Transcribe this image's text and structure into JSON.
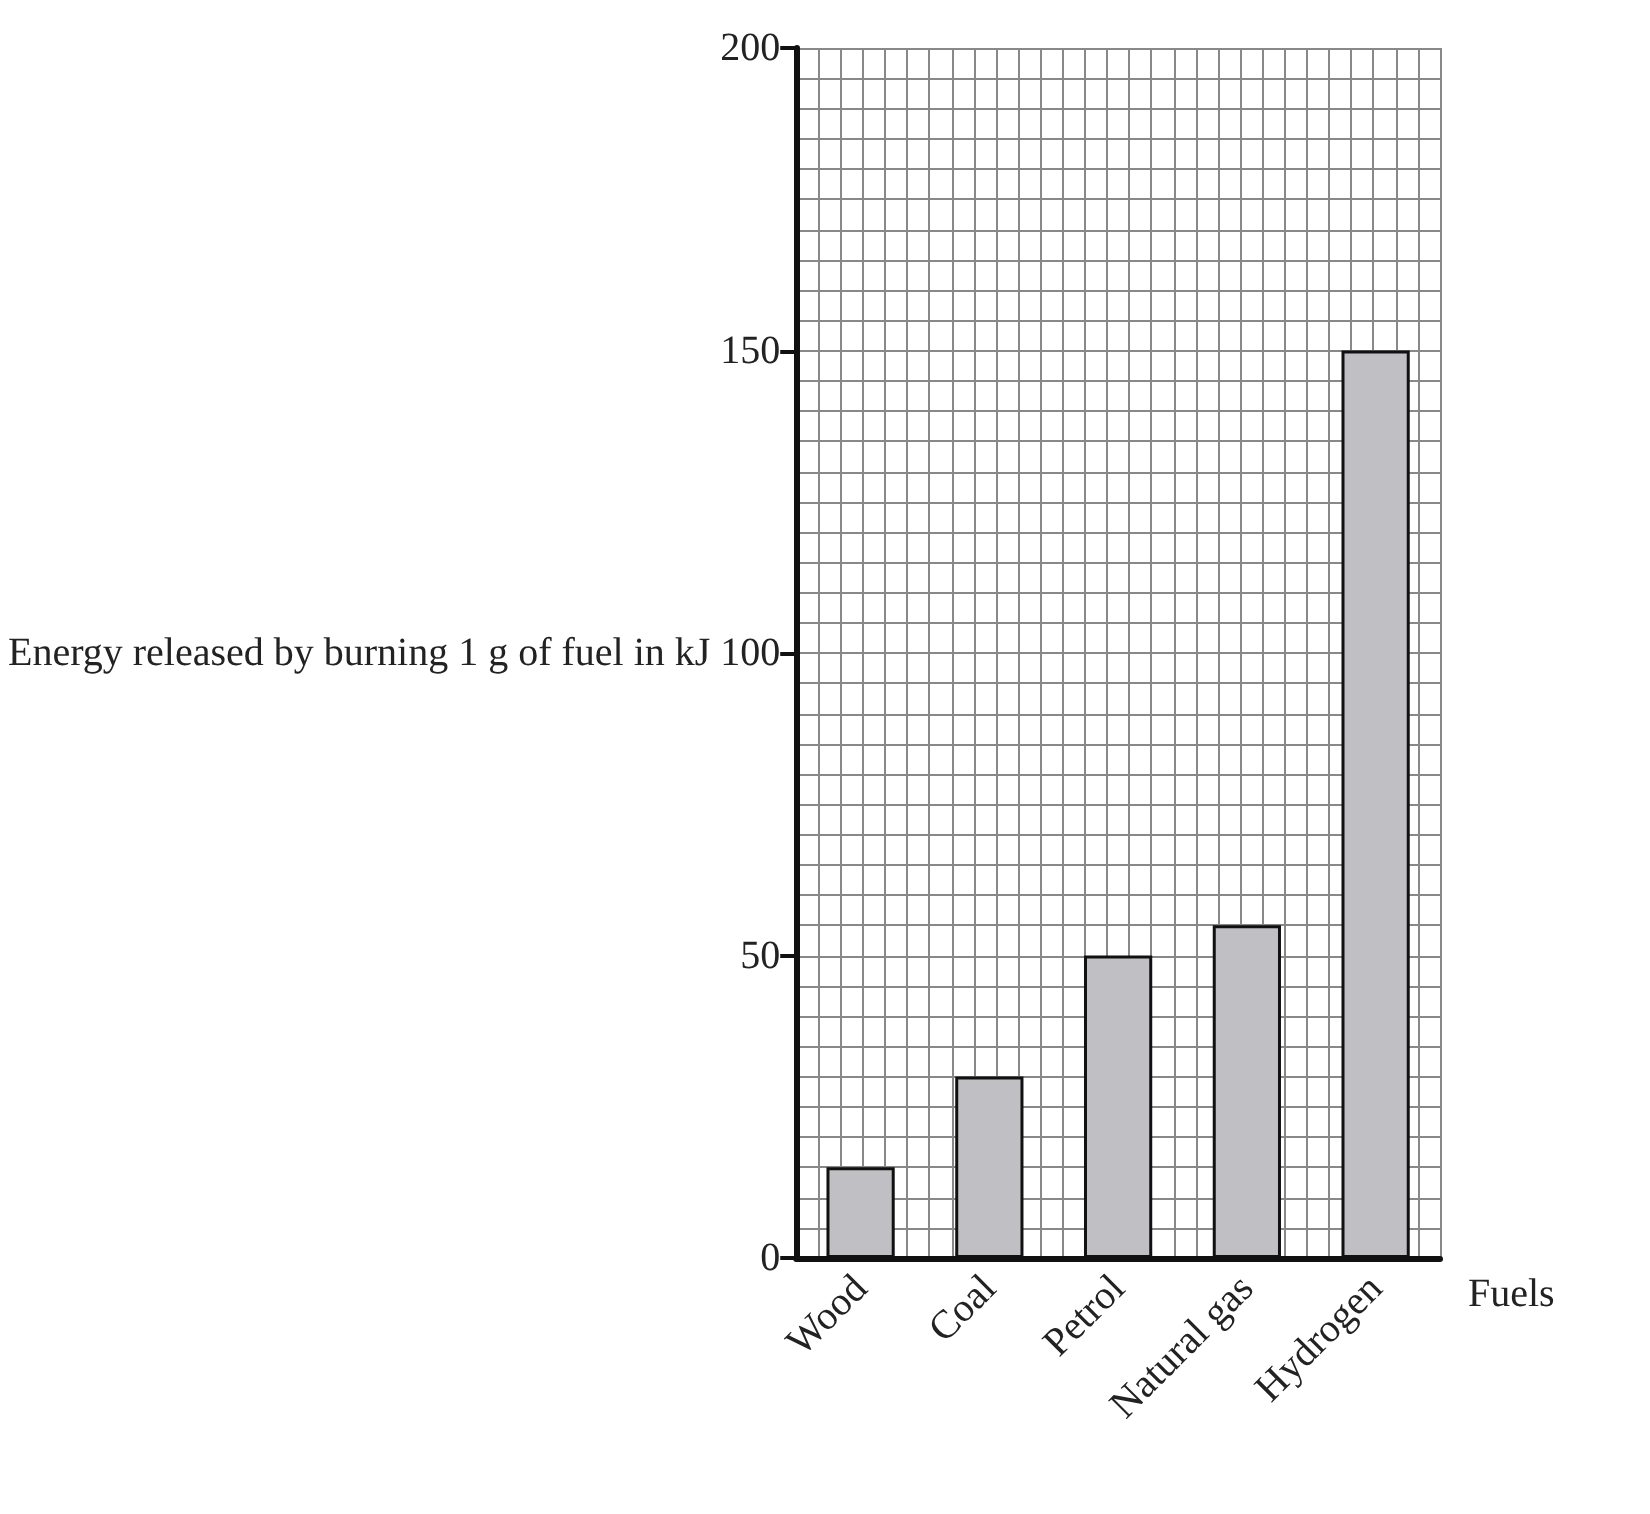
{
  "chart_data": {
    "type": "bar",
    "categories": [
      "Wood",
      "Coal",
      "Petrol",
      "Natural gas",
      "Hydrogen"
    ],
    "values": [
      15,
      30,
      50,
      55,
      150
    ],
    "color": "#c0c0c4",
    "xlabel": "Fuels",
    "ylabel": "Energy released by burning 1 g of fuel in kJ",
    "ylim": [
      0,
      200
    ],
    "yticks": [
      0,
      50,
      100,
      150,
      200
    ],
    "grid": true
  }
}
